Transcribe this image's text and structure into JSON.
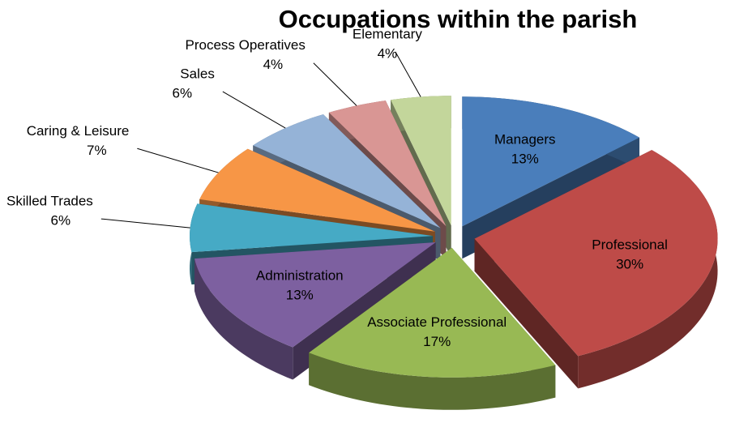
{
  "chart_data": {
    "type": "pie3d",
    "title": "Occupations within the parish",
    "categories": [
      "Managers",
      "Professional",
      "Associate Professional",
      "Administration",
      "Skilled Trades",
      "Caring & Leisure",
      "Sales",
      "Process Operatives",
      "Elementary"
    ],
    "values": [
      13,
      30,
      17,
      13,
      6,
      7,
      6,
      4,
      4
    ],
    "value_labels": [
      "13%",
      "30%",
      "17%",
      "13%",
      "6%",
      "7%",
      "6%",
      "4%",
      "4%"
    ],
    "colors": [
      "#4a7ebb",
      "#be4b48",
      "#98b954",
      "#7d60a0",
      "#46aac5",
      "#f79646",
      "#95b3d7",
      "#d99694",
      "#c3d69b"
    ]
  }
}
